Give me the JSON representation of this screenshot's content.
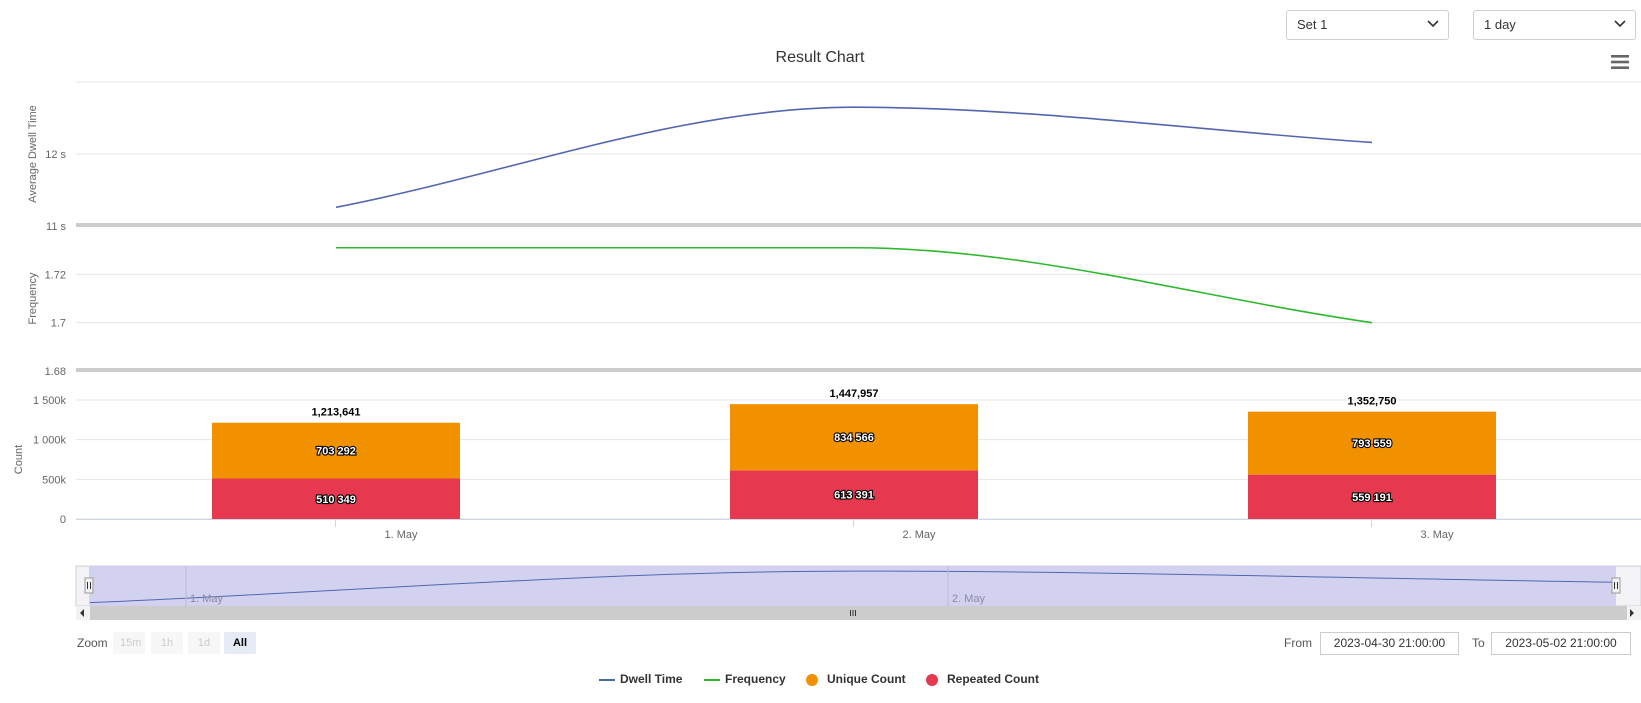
{
  "controls": {
    "set_select": {
      "value": "Set 1"
    },
    "period_select": {
      "value": "1 day"
    }
  },
  "menu_icon": "hamburger-menu-icon",
  "navigator": {
    "labels": [
      "1. May",
      "2. May"
    ],
    "scrollbar_grip": "≡"
  },
  "range_selector": {
    "zoom_label": "Zoom",
    "buttons": [
      {
        "label": "15m",
        "active": false
      },
      {
        "label": "1h",
        "active": false
      },
      {
        "label": "1d",
        "active": false
      },
      {
        "label": "All",
        "active": true
      }
    ],
    "from_label": "From",
    "from_value": "2023-04-30 21:00:00",
    "to_label": "To",
    "to_value": "2023-05-02 21:00:00"
  },
  "legend": [
    {
      "name": "Dwell Time",
      "color": "#5266b0",
      "symbol": "line"
    },
    {
      "name": "Frequency",
      "color": "#2eb82e",
      "symbol": "line"
    },
    {
      "name": "Unique Count",
      "color": "#f29100",
      "symbol": "circle"
    },
    {
      "name": "Repeated Count",
      "color": "#e63950",
      "symbol": "circle"
    }
  ],
  "chart_data": {
    "type": "stock-combo",
    "title": "Result Chart",
    "categories": [
      "1. May",
      "2. May",
      "3. May"
    ],
    "panes": [
      {
        "type": "line",
        "ylabel": "Average Dwell Time",
        "ylim": [
          11,
          13
        ],
        "yticks": [
          "11 s",
          "12 s"
        ],
        "tick_values": [
          11,
          12
        ],
        "series": [
          {
            "name": "Dwell Time",
            "color": "#5266b0",
            "values": [
              11.26,
              12.65,
              12.16
            ]
          }
        ]
      },
      {
        "type": "line",
        "ylabel": "Frequency",
        "ylim": [
          1.68,
          1.74
        ],
        "yticks": [
          "1.68",
          "1.7",
          "1.72"
        ],
        "tick_values": [
          1.68,
          1.7,
          1.72
        ],
        "series": [
          {
            "name": "Frequency",
            "color": "#2eb82e",
            "values": [
              1.731,
              1.731,
              1.7
            ]
          }
        ]
      },
      {
        "type": "bar",
        "stacked": true,
        "ylabel": "Count",
        "ylim": [
          0,
          1500000
        ],
        "yticks": [
          "0",
          "500k",
          "1 000k",
          "1 500k"
        ],
        "tick_values": [
          0,
          500000,
          1000000,
          1500000
        ],
        "series": [
          {
            "name": "Repeated Count",
            "color": "#e63950",
            "values": [
              510349,
              613391,
              559191
            ],
            "labels": [
              "510 349",
              "613 391",
              "559 191"
            ]
          },
          {
            "name": "Unique Count",
            "color": "#f29100",
            "values": [
              703292,
              834566,
              793559
            ],
            "labels": [
              "703 292",
              "834 566",
              "793 559"
            ]
          }
        ],
        "totals": [
          "1,213,641",
          "1,447,957",
          "1,352,750"
        ]
      }
    ],
    "grid": true,
    "legend_position": "bottom-center"
  }
}
